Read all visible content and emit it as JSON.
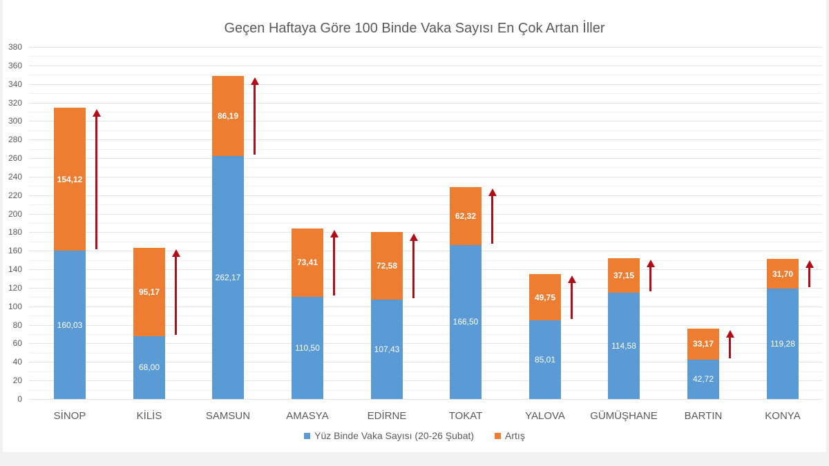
{
  "chart_data": {
    "type": "bar",
    "stacked": true,
    "title": "Geçen Haftaya Göre 100 Binde Vaka Sayısı En Çok Artan İller",
    "xlabel": "",
    "ylabel": "",
    "ylim": [
      0,
      380
    ],
    "yticks": [
      0,
      20,
      40,
      60,
      80,
      100,
      120,
      140,
      160,
      180,
      200,
      220,
      240,
      260,
      280,
      300,
      320,
      340,
      360,
      380
    ],
    "grid": true,
    "legend_position": "bottom",
    "categories": [
      "SİNOP",
      "KİLİS",
      "SAMSUN",
      "AMASYA",
      "EDİRNE",
      "TOKAT",
      "YALOVA",
      "GÜMÜŞHANE",
      "BARTIN",
      "KONYA"
    ],
    "series": [
      {
        "name": "Yüz Binde Vaka Sayısı (20-26 Şubat)",
        "color": "#5b9bd5",
        "values": [
          160.03,
          68.0,
          262.17,
          110.5,
          107.43,
          166.5,
          85.01,
          114.58,
          42.72,
          119.28
        ],
        "labels": [
          "160,03",
          "68,00",
          "262,17",
          "110,50",
          "107,43",
          "166,50",
          "85,01",
          "114,58",
          "42,72",
          "119,28"
        ]
      },
      {
        "name": "Artış",
        "color": "#ed7d31",
        "values": [
          154.12,
          95.17,
          86.19,
          73.41,
          72.58,
          62.32,
          49.75,
          37.15,
          33.17,
          31.7
        ],
        "labels": [
          "154,12",
          "95,17",
          "86,19",
          "73,41",
          "72,58",
          "62,32",
          "49,75",
          "37,15",
          "33,17",
          "31,70"
        ]
      }
    ],
    "annotations": "Red upward arrow beside each bar spanning the Artış segment",
    "arrow_color": "#b20d16"
  }
}
